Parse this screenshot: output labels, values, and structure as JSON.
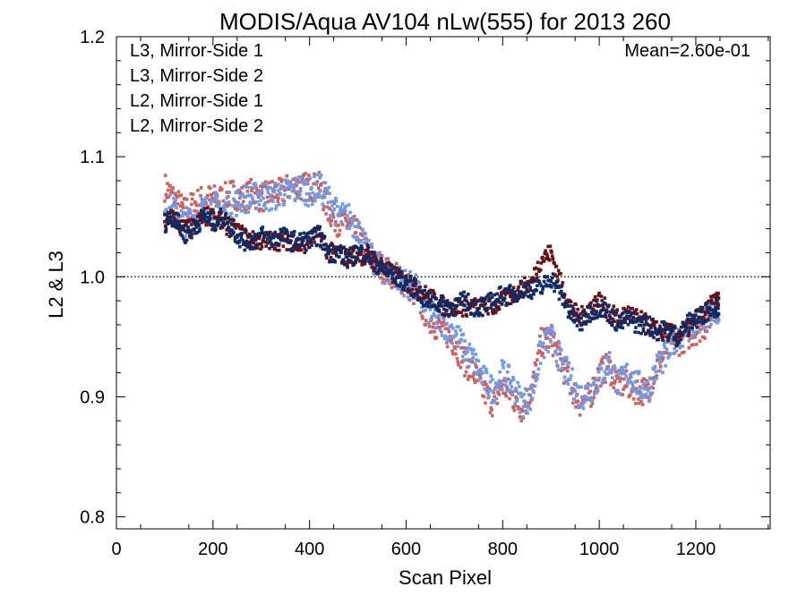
{
  "chart_data": {
    "type": "scatter",
    "title": "MODIS/Aqua AV104 nLw(555) for 2013 260",
    "xlabel": "Scan Pixel",
    "ylabel": "L2 & L3",
    "xlim": [
      0,
      1354
    ],
    "ylim": [
      0.79,
      1.2
    ],
    "xticks": [
      0,
      200,
      400,
      600,
      800,
      1000,
      1200
    ],
    "yticks": [
      0.8,
      0.9,
      1.0,
      1.1,
      1.2
    ],
    "x_tick_labels": [
      "0",
      "200",
      "400",
      "600",
      "800",
      "1000",
      "1200"
    ],
    "y_tick_labels": [
      "0.8",
      "0.9",
      "1.0",
      "1.1",
      "1.2"
    ],
    "reference_line": {
      "y": 1.0,
      "style": "dotted"
    },
    "annotation": {
      "text": "Mean=2.60e-01",
      "color": "#d06060"
    },
    "legend_position": "top-left",
    "series": [
      {
        "name": "L3, Mirror-Side 1",
        "color": "#0d2b66",
        "x": [
          100,
          120,
          140,
          160,
          180,
          200,
          220,
          240,
          260,
          280,
          300,
          320,
          340,
          360,
          380,
          400,
          420,
          440,
          460,
          480,
          500,
          520,
          540,
          560,
          580,
          600,
          620,
          640,
          660,
          680,
          700,
          720,
          740,
          760,
          780,
          800,
          820,
          840,
          860,
          880,
          900,
          920,
          940,
          960,
          980,
          1000,
          1020,
          1040,
          1060,
          1080,
          1100,
          1120,
          1140,
          1160,
          1180,
          1200,
          1220,
          1240
        ],
        "y": [
          1.045,
          1.05,
          1.035,
          1.04,
          1.05,
          1.045,
          1.05,
          1.04,
          1.03,
          1.03,
          1.035,
          1.03,
          1.035,
          1.03,
          1.03,
          1.03,
          1.035,
          1.02,
          1.02,
          1.015,
          1.02,
          1.02,
          1.01,
          1.005,
          1.0,
          0.995,
          0.99,
          0.98,
          0.98,
          0.975,
          0.975,
          0.98,
          0.975,
          0.975,
          0.98,
          0.985,
          0.985,
          0.99,
          0.99,
          0.99,
          1.0,
          0.985,
          0.97,
          0.96,
          0.97,
          0.975,
          0.97,
          0.96,
          0.965,
          0.96,
          0.96,
          0.955,
          0.955,
          0.95,
          0.96,
          0.965,
          0.97,
          0.975
        ]
      },
      {
        "name": "L3, Mirror-Side 2",
        "color": "#6b0f14",
        "x": [
          100,
          120,
          140,
          160,
          180,
          200,
          220,
          240,
          260,
          280,
          300,
          320,
          340,
          360,
          380,
          400,
          420,
          440,
          460,
          480,
          500,
          520,
          540,
          560,
          580,
          600,
          620,
          640,
          660,
          680,
          700,
          720,
          740,
          760,
          780,
          800,
          820,
          840,
          860,
          880,
          900,
          920,
          940,
          960,
          980,
          1000,
          1020,
          1040,
          1060,
          1080,
          1100,
          1120,
          1140,
          1160,
          1180,
          1200,
          1220,
          1240
        ],
        "y": [
          1.045,
          1.05,
          1.04,
          1.04,
          1.05,
          1.05,
          1.045,
          1.04,
          1.035,
          1.03,
          1.03,
          1.03,
          1.03,
          1.03,
          1.025,
          1.03,
          1.035,
          1.02,
          1.02,
          1.015,
          1.02,
          1.015,
          1.01,
          1.005,
          1.0,
          0.995,
          0.99,
          0.985,
          0.98,
          0.975,
          0.975,
          0.975,
          0.975,
          0.975,
          0.975,
          0.98,
          0.985,
          0.99,
          0.995,
          1.015,
          1.02,
          0.995,
          0.975,
          0.965,
          0.975,
          0.98,
          0.97,
          0.965,
          0.97,
          0.965,
          0.96,
          0.955,
          0.955,
          0.95,
          0.955,
          0.965,
          0.97,
          0.98
        ]
      },
      {
        "name": "L2, Mirror-Side 1",
        "color": "#6f9ae6",
        "x": [
          100,
          120,
          140,
          160,
          180,
          200,
          220,
          240,
          260,
          280,
          300,
          320,
          340,
          360,
          380,
          400,
          420,
          440,
          460,
          480,
          500,
          520,
          540,
          560,
          580,
          600,
          620,
          640,
          660,
          680,
          700,
          720,
          740,
          760,
          780,
          800,
          820,
          840,
          860,
          880,
          900,
          920,
          940,
          960,
          980,
          1000,
          1020,
          1040,
          1060,
          1080,
          1100,
          1120,
          1140,
          1160,
          1180,
          1200,
          1220,
          1240
        ],
        "y": [
          1.06,
          1.055,
          1.045,
          1.05,
          1.055,
          1.06,
          1.055,
          1.06,
          1.065,
          1.065,
          1.07,
          1.065,
          1.07,
          1.07,
          1.075,
          1.07,
          1.075,
          1.065,
          1.05,
          1.05,
          1.04,
          1.02,
          1.01,
          1.005,
          1.0,
          0.995,
          0.99,
          0.975,
          0.965,
          0.96,
          0.955,
          0.94,
          0.93,
          0.915,
          0.905,
          0.92,
          0.91,
          0.895,
          0.9,
          0.94,
          0.95,
          0.93,
          0.915,
          0.9,
          0.905,
          0.915,
          0.93,
          0.91,
          0.92,
          0.91,
          0.905,
          0.925,
          0.935,
          0.95,
          0.955,
          0.96,
          0.965,
          0.97
        ]
      },
      {
        "name": "L2, Mirror-Side 2",
        "color": "#d06060",
        "x": [
          100,
          120,
          140,
          160,
          180,
          200,
          220,
          240,
          260,
          280,
          300,
          320,
          340,
          360,
          380,
          400,
          420,
          440,
          460,
          480,
          500,
          520,
          540,
          560,
          580,
          600,
          620,
          640,
          660,
          680,
          700,
          720,
          740,
          760,
          780,
          800,
          820,
          840,
          860,
          880,
          900,
          920,
          940,
          960,
          980,
          1000,
          1020,
          1040,
          1060,
          1080,
          1100,
          1120,
          1140,
          1160,
          1180,
          1200,
          1220,
          1240
        ],
        "y": [
          1.075,
          1.065,
          1.055,
          1.06,
          1.065,
          1.065,
          1.065,
          1.07,
          1.065,
          1.07,
          1.065,
          1.07,
          1.07,
          1.075,
          1.075,
          1.075,
          1.075,
          1.055,
          1.045,
          1.045,
          1.035,
          1.02,
          1.01,
          1.005,
          1.0,
          0.995,
          0.985,
          0.97,
          0.96,
          0.955,
          0.945,
          0.93,
          0.92,
          0.905,
          0.895,
          0.91,
          0.9,
          0.89,
          0.905,
          0.945,
          0.95,
          0.93,
          0.91,
          0.895,
          0.9,
          0.92,
          0.925,
          0.91,
          0.91,
          0.905,
          0.905,
          0.925,
          0.94,
          0.945,
          0.95,
          0.955,
          0.96,
          0.975
        ]
      }
    ]
  }
}
